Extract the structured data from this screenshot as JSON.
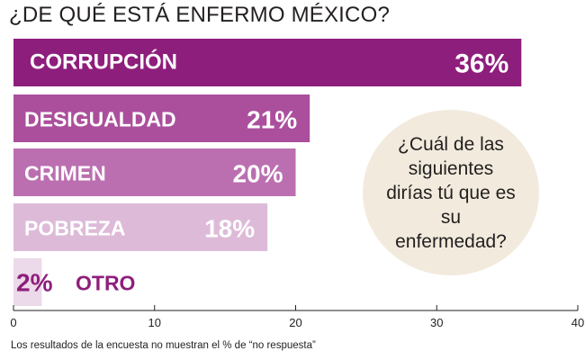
{
  "chart_data": {
    "type": "bar",
    "orientation": "horizontal",
    "title": "¿DE QUÉ ESTÁ ENFERMO MÉXICO?",
    "categories": [
      "CORRUPCIÓN",
      "DESIGUALDAD",
      "CRIMEN",
      "POBREZA",
      "OTRO"
    ],
    "values": [
      36,
      21,
      20,
      18,
      2
    ],
    "value_labels": [
      "36%",
      "21%",
      "20%",
      "18%",
      "2%"
    ],
    "bar_colors": [
      "#8e1e7c",
      "#ab4f9d",
      "#bb6fb0",
      "#ddbbd8",
      "#ecd9e9"
    ],
    "xlim": [
      0,
      40
    ],
    "x_ticks": [
      0,
      10,
      20,
      30,
      40
    ],
    "x_tick_labels": [
      "0",
      "10",
      "20",
      "30",
      "40"
    ],
    "grid": false
  },
  "callout": {
    "text": "¿Cuál de las siguientes dirías tú que es su enfermedad?"
  },
  "footnote": "Los resultados de la encuesta no muestran el % de “no respuesta”",
  "colors": {
    "accent": "#8e1e7c",
    "callout_bg": "#f2ebdd",
    "text": "#231f20"
  }
}
